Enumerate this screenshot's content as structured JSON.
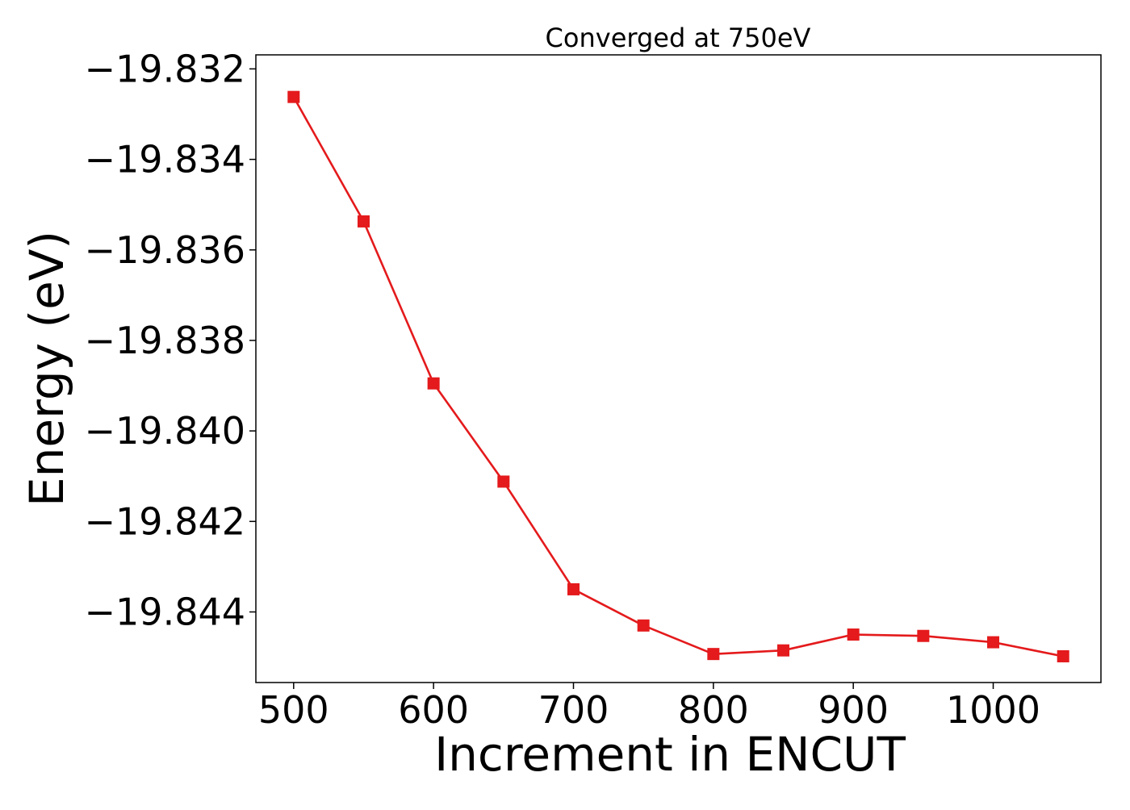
{
  "chart_data": {
    "type": "line",
    "title": "Converged at 750eV",
    "xlabel": "Increment in ENCUT",
    "ylabel": "Energy (eV)",
    "xlim": [
      473,
      1077
    ],
    "ylim": [
      -19.84556,
      -19.83169
    ],
    "xticks": [
      500,
      600,
      700,
      800,
      900,
      1000
    ],
    "xtick_labels": [
      "500",
      "600",
      "700",
      "800",
      "900",
      "1000"
    ],
    "yticks": [
      -19.832,
      -19.834,
      -19.836,
      -19.838,
      -19.84,
      -19.842,
      -19.844
    ],
    "ytick_labels": [
      "−19.832",
      "−19.834",
      "−19.836",
      "−19.838",
      "−19.840",
      "−19.842",
      "−19.844"
    ],
    "grid": false,
    "legend": "none",
    "series": [
      {
        "color": "#e41a1c",
        "marker": "square",
        "x": [
          500,
          550,
          600,
          650,
          700,
          750,
          800,
          850,
          900,
          950,
          1000,
          1050
        ],
        "y": [
          -19.83262,
          -19.83537,
          -19.83895,
          -19.84112,
          -19.8435,
          -19.8443,
          -19.84493,
          -19.84485,
          -19.8445,
          -19.84453,
          -19.84467,
          -19.84498
        ]
      }
    ]
  }
}
